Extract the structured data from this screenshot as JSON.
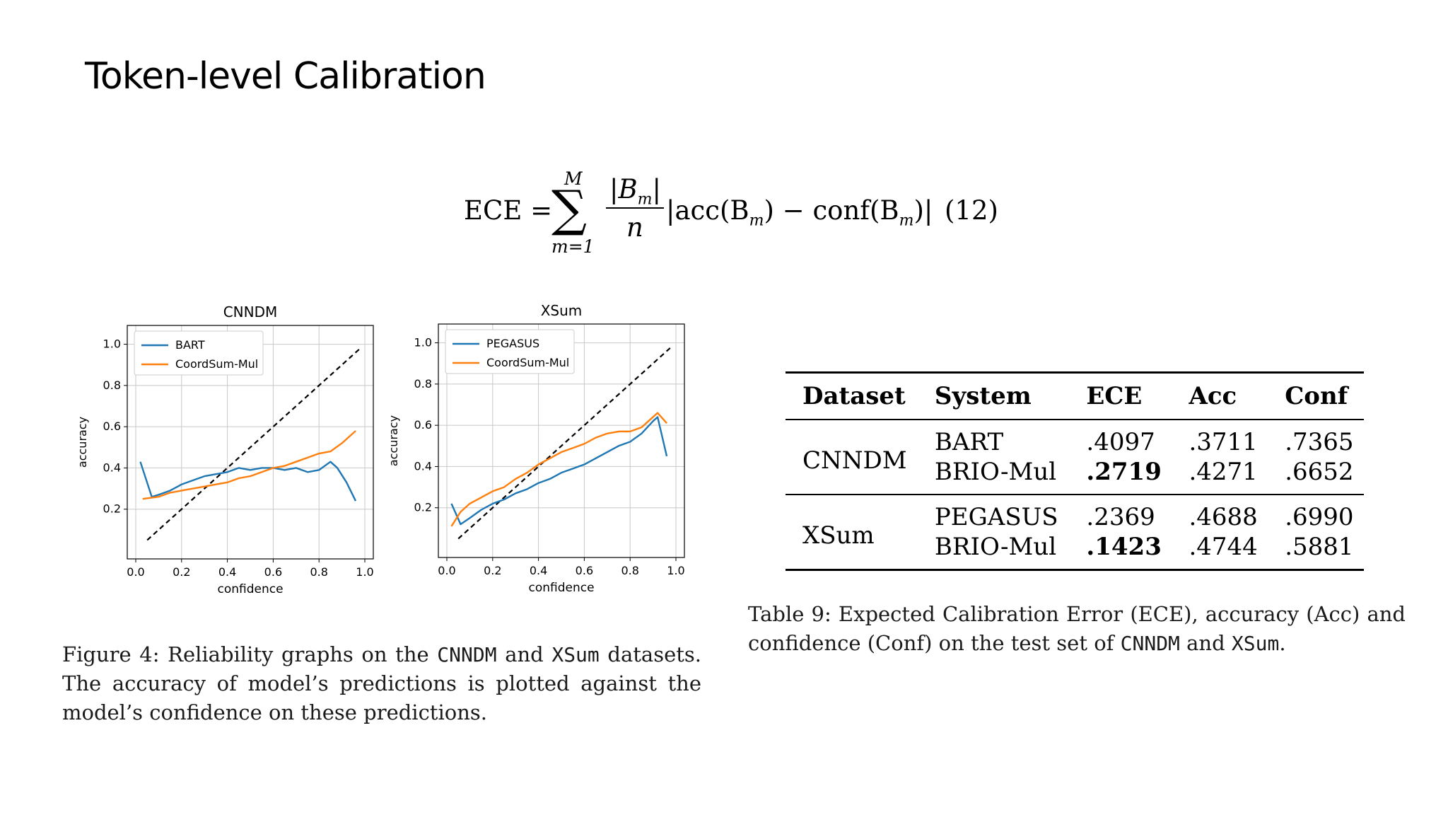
{
  "slide": {
    "title": "Token-level Calibration"
  },
  "equation": {
    "lhs": "ECE =",
    "sum_upper": "M",
    "sum_lower": "m=1",
    "numerator": "|B",
    "numerator_sub": "m",
    "numerator_end": "|",
    "denominator": "n",
    "rhs": "|acc(B",
    "rhs_sub1": "m",
    "rhs_mid": ") − conf(B",
    "rhs_sub2": "m",
    "rhs_end": ")|",
    "number": "(12)"
  },
  "chart_data": [
    {
      "type": "line",
      "title": "CNNDM",
      "xlabel": "confidence",
      "ylabel": "accuracy",
      "xlim": [
        0,
        1
      ],
      "ylim": [
        0,
        1.05
      ],
      "xticks": [
        "0.0",
        "0.2",
        "0.4",
        "0.6",
        "0.8",
        "1.0"
      ],
      "yticks": [
        "0.2",
        "0.4",
        "0.6",
        "0.8",
        "1.0"
      ],
      "grid": true,
      "legend": "top-left",
      "diagonal": {
        "from": [
          0.05,
          0.05
        ],
        "to": [
          0.98,
          0.98
        ],
        "style": "dashed",
        "color": "#000000"
      },
      "series": [
        {
          "name": "BART",
          "color": "#1f77b4",
          "x": [
            0.02,
            0.07,
            0.1,
            0.15,
            0.2,
            0.25,
            0.3,
            0.35,
            0.4,
            0.45,
            0.5,
            0.55,
            0.6,
            0.65,
            0.7,
            0.75,
            0.8,
            0.85,
            0.88,
            0.92,
            0.96
          ],
          "y": [
            0.43,
            0.26,
            0.27,
            0.29,
            0.32,
            0.34,
            0.36,
            0.37,
            0.38,
            0.4,
            0.39,
            0.4,
            0.4,
            0.39,
            0.4,
            0.38,
            0.39,
            0.43,
            0.4,
            0.33,
            0.24
          ]
        },
        {
          "name": "CoordSum-Mul",
          "color": "#ff7f0e",
          "x": [
            0.03,
            0.1,
            0.15,
            0.2,
            0.25,
            0.3,
            0.35,
            0.4,
            0.45,
            0.5,
            0.55,
            0.6,
            0.65,
            0.7,
            0.75,
            0.8,
            0.85,
            0.9,
            0.96
          ],
          "y": [
            0.25,
            0.26,
            0.28,
            0.29,
            0.3,
            0.31,
            0.32,
            0.33,
            0.35,
            0.36,
            0.38,
            0.4,
            0.41,
            0.43,
            0.45,
            0.47,
            0.48,
            0.52,
            0.58
          ]
        }
      ]
    },
    {
      "type": "line",
      "title": "XSum",
      "xlabel": "confidence",
      "ylabel": "accuracy",
      "xlim": [
        0,
        1
      ],
      "ylim": [
        0,
        1.05
      ],
      "xticks": [
        "0.0",
        "0.2",
        "0.4",
        "0.6",
        "0.8",
        "1.0"
      ],
      "yticks": [
        "0.2",
        "0.4",
        "0.6",
        "0.8",
        "1.0"
      ],
      "grid": true,
      "legend": "top-left",
      "diagonal": {
        "from": [
          0.05,
          0.05
        ],
        "to": [
          0.98,
          0.98
        ],
        "style": "dashed",
        "color": "#000000"
      },
      "series": [
        {
          "name": "PEGASUS",
          "color": "#1f77b4",
          "x": [
            0.02,
            0.06,
            0.1,
            0.15,
            0.2,
            0.25,
            0.3,
            0.35,
            0.4,
            0.45,
            0.5,
            0.55,
            0.6,
            0.65,
            0.7,
            0.75,
            0.8,
            0.85,
            0.9,
            0.92,
            0.96
          ],
          "y": [
            0.22,
            0.12,
            0.15,
            0.19,
            0.22,
            0.24,
            0.27,
            0.29,
            0.32,
            0.34,
            0.37,
            0.39,
            0.41,
            0.44,
            0.47,
            0.5,
            0.52,
            0.56,
            0.62,
            0.64,
            0.45
          ]
        },
        {
          "name": "CoordSum-Mul",
          "color": "#ff7f0e",
          "x": [
            0.02,
            0.06,
            0.1,
            0.15,
            0.2,
            0.25,
            0.3,
            0.35,
            0.4,
            0.45,
            0.5,
            0.55,
            0.6,
            0.65,
            0.7,
            0.75,
            0.8,
            0.85,
            0.88,
            0.92,
            0.96
          ],
          "y": [
            0.11,
            0.18,
            0.22,
            0.25,
            0.28,
            0.3,
            0.34,
            0.37,
            0.41,
            0.44,
            0.47,
            0.49,
            0.51,
            0.54,
            0.56,
            0.57,
            0.57,
            0.59,
            0.62,
            0.66,
            0.61
          ]
        }
      ]
    }
  ],
  "figure_caption": {
    "part1": "Figure 4: Reliability graphs on the ",
    "mono1": "CNNDM",
    "part2": " and ",
    "mono2": "XSum",
    "part3": " datasets. The accuracy of model’s predictions is plotted against the model’s confidence on these predictions."
  },
  "table": {
    "headers": [
      "Dataset",
      "System",
      "ECE",
      "Acc",
      "Conf"
    ],
    "groups": [
      {
        "dataset": "CNNDM",
        "rows": [
          {
            "system": "BART",
            "ece": ".4097",
            "acc": ".3711",
            "conf": ".7365",
            "ece_bold": false
          },
          {
            "system": "BRIO-Mul",
            "ece": ".2719",
            "acc": ".4271",
            "conf": ".6652",
            "ece_bold": true
          }
        ]
      },
      {
        "dataset": "XSum",
        "rows": [
          {
            "system": "PEGASUS",
            "ece": ".2369",
            "acc": ".4688",
            "conf": ".6990",
            "ece_bold": false
          },
          {
            "system": "BRIO-Mul",
            "ece": ".1423",
            "acc": ".4744",
            "conf": ".5881",
            "ece_bold": true
          }
        ]
      }
    ]
  },
  "table_caption": {
    "part1": "Table 9:  Expected Calibration Error (ECE), accuracy (Acc) and confidence (Conf) on the test set of ",
    "mono1": "CNNDM",
    "part2": " and ",
    "mono2": "XSum",
    "part3": "."
  }
}
